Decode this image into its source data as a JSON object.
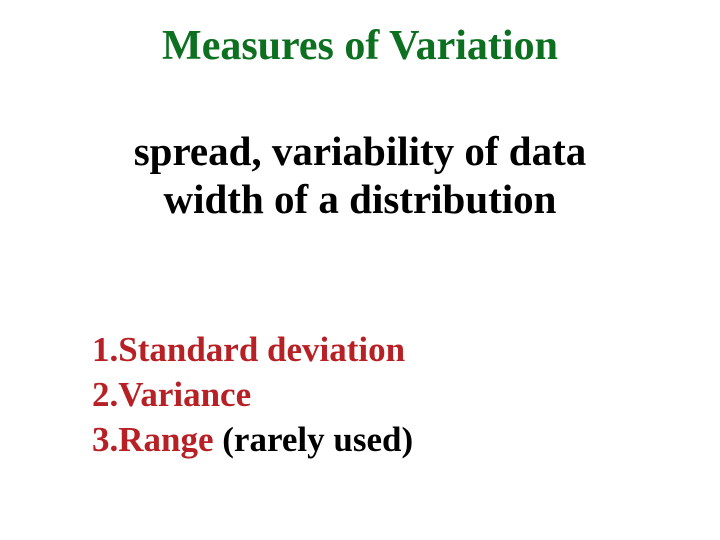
{
  "title": {
    "text": "Measures of Variation",
    "color": "#0d7020",
    "fontsize": 42
  },
  "subtitle": {
    "line1": "spread, variability of data",
    "line2": "width of a distribution",
    "color": "#000000",
    "fontsize": 41
  },
  "list": {
    "fontsize": 35,
    "number_color": "#b72025",
    "items": [
      {
        "number": "1.",
        "text": "Standard deviation",
        "text_color": "#b72025"
      },
      {
        "number": "2.",
        "text": "Variance",
        "text_color": "#b72025"
      },
      {
        "number": "3.",
        "text": "Range",
        "text_color": "#b72025",
        "suffix": " (rarely used)",
        "suffix_color": "#000000"
      }
    ]
  },
  "background_color": "#ffffff"
}
